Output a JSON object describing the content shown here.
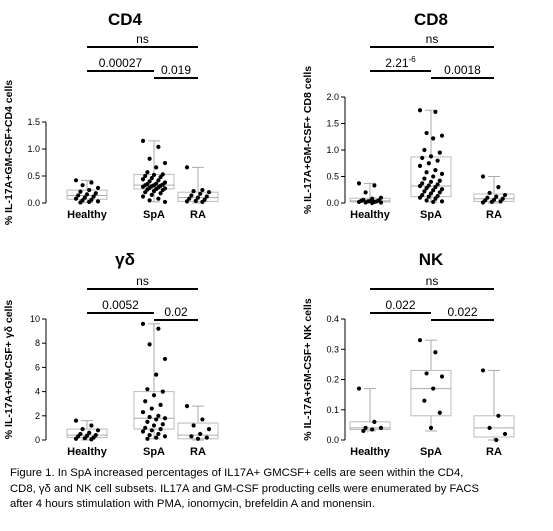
{
  "chart_data": [
    {
      "type": "box",
      "title": "CD4",
      "ylabel": "% IL-17A+GM-CSF+CD4 cells",
      "categories": [
        "Healthy",
        "SpA",
        "RA"
      ],
      "ylim": [
        0,
        1.5
      ],
      "yticks": [
        "0.0",
        "0.5",
        "1.0",
        "1.5"
      ],
      "series": [
        {
          "category": "Healthy",
          "min": 0.01,
          "q1": 0.07,
          "median": 0.14,
          "q3": 0.24,
          "max": 0.42,
          "points": [
            0.42,
            0.38,
            0.33,
            0.28,
            0.24,
            0.21,
            0.18,
            0.16,
            0.14,
            0.12,
            0.1,
            0.08,
            0.06,
            0.05,
            0.03,
            0.02,
            0.01
          ]
        },
        {
          "category": "SpA",
          "min": 0.02,
          "q1": 0.26,
          "median": 0.33,
          "q3": 0.53,
          "max": 1.15,
          "points": [
            1.15,
            1.04,
            0.82,
            0.74,
            0.66,
            0.57,
            0.53,
            0.52,
            0.5,
            0.48,
            0.46,
            0.44,
            0.42,
            0.4,
            0.38,
            0.36,
            0.35,
            0.34,
            0.33,
            0.33,
            0.32,
            0.31,
            0.3,
            0.29,
            0.28,
            0.27,
            0.26,
            0.25,
            0.24,
            0.22,
            0.2,
            0.18,
            0.15,
            0.12,
            0.08,
            0.05,
            0.02
          ]
        },
        {
          "category": "RA",
          "min": 0.0,
          "q1": 0.03,
          "median": 0.1,
          "q3": 0.2,
          "max": 0.66,
          "points": [
            0.66,
            0.24,
            0.22,
            0.2,
            0.17,
            0.14,
            0.12,
            0.1,
            0.08,
            0.06,
            0.04,
            0.03,
            0.02
          ]
        }
      ],
      "comparisons": [
        {
          "label": "ns",
          "from": "Healthy",
          "to": "RA"
        },
        {
          "label": "0.00027",
          "from": "Healthy",
          "to": "SpA"
        },
        {
          "label": "0.019",
          "from": "SpA",
          "to": "RA"
        }
      ]
    },
    {
      "type": "box",
      "title": "CD8",
      "ylabel": "% IL-17A+GM-CSF+ CD8 cells",
      "categories": [
        "Healthy",
        "SpA",
        "RA"
      ],
      "ylim": [
        0,
        2.0
      ],
      "yticks": [
        "0.0",
        "0.5",
        "1.0",
        "1.5",
        "2.0"
      ],
      "series": [
        {
          "category": "Healthy",
          "min": 0.0,
          "q1": 0.02,
          "median": 0.04,
          "q3": 0.09,
          "max": 0.37,
          "points": [
            0.37,
            0.33,
            0.2,
            0.1,
            0.08,
            0.06,
            0.05,
            0.04,
            0.04,
            0.03,
            0.03,
            0.02,
            0.02,
            0.01,
            0.01,
            0.0
          ]
        },
        {
          "category": "SpA",
          "min": 0.02,
          "q1": 0.12,
          "median": 0.32,
          "q3": 0.87,
          "max": 1.75,
          "points": [
            1.75,
            1.72,
            1.32,
            1.27,
            1.22,
            1.0,
            0.95,
            0.88,
            0.85,
            0.8,
            0.75,
            0.7,
            0.62,
            0.58,
            0.55,
            0.5,
            0.46,
            0.42,
            0.4,
            0.37,
            0.35,
            0.33,
            0.32,
            0.3,
            0.28,
            0.26,
            0.24,
            0.22,
            0.2,
            0.18,
            0.15,
            0.13,
            0.12,
            0.1,
            0.08,
            0.05,
            0.03,
            0.02
          ]
        },
        {
          "category": "RA",
          "min": 0.0,
          "q1": 0.03,
          "median": 0.08,
          "q3": 0.17,
          "max": 0.5,
          "points": [
            0.5,
            0.3,
            0.19,
            0.15,
            0.12,
            0.1,
            0.08,
            0.06,
            0.05,
            0.03,
            0.02,
            0.01
          ]
        }
      ],
      "comparisons": [
        {
          "label": "ns",
          "from": "Healthy",
          "to": "RA"
        },
        {
          "label": "2.21",
          "label_sup": "-6",
          "from": "Healthy",
          "to": "SpA"
        },
        {
          "label": "0.0018",
          "from": "SpA",
          "to": "RA"
        }
      ]
    },
    {
      "type": "box",
      "title": "γδ",
      "ylabel": "% IL-17A+GM-CSF+ γδ cells",
      "categories": [
        "Healthy",
        "SpA",
        "RA"
      ],
      "ylim": [
        0,
        10
      ],
      "yticks": [
        "0",
        "2",
        "4",
        "6",
        "8",
        "10"
      ],
      "series": [
        {
          "category": "Healthy",
          "min": 0.0,
          "q1": 0.2,
          "median": 0.4,
          "q3": 0.9,
          "max": 1.6,
          "points": [
            1.6,
            1.2,
            0.9,
            0.8,
            0.6,
            0.5,
            0.4,
            0.35,
            0.3,
            0.2,
            0.15,
            0.1,
            0.05
          ]
        },
        {
          "category": "SpA",
          "min": 0.1,
          "q1": 0.9,
          "median": 1.8,
          "q3": 4.0,
          "max": 9.6,
          "points": [
            9.6,
            9.2,
            7.9,
            6.7,
            5.4,
            4.2,
            4.0,
            3.7,
            3.2,
            2.9,
            2.6,
            2.3,
            2.0,
            1.9,
            1.8,
            1.7,
            1.5,
            1.3,
            1.2,
            1.0,
            0.9,
            0.8,
            0.7,
            0.5,
            0.4,
            0.3,
            0.2,
            0.1
          ]
        },
        {
          "category": "RA",
          "min": 0.0,
          "q1": 0.1,
          "median": 0.4,
          "q3": 1.4,
          "max": 2.8,
          "points": [
            2.8,
            1.7,
            1.2,
            0.9,
            0.5,
            0.3,
            0.2,
            0.1
          ]
        }
      ],
      "comparisons": [
        {
          "label": "ns",
          "from": "Healthy",
          "to": "RA"
        },
        {
          "label": "0.0052",
          "from": "Healthy",
          "to": "SpA"
        },
        {
          "label": "0.02",
          "from": "SpA",
          "to": "RA"
        }
      ]
    },
    {
      "type": "box",
      "title": "NK",
      "ylabel": "% IL-17A+GM-CSF+ NK cells",
      "categories": [
        "Healthy",
        "SpA",
        "RA"
      ],
      "ylim": [
        0,
        0.4
      ],
      "yticks": [
        "0.0",
        "0.1",
        "0.2",
        "0.3",
        "0.4"
      ],
      "series": [
        {
          "category": "Healthy",
          "min": 0.03,
          "q1": 0.035,
          "median": 0.04,
          "q3": 0.06,
          "max": 0.17,
          "points": [
            0.17,
            0.06,
            0.04,
            0.04,
            0.035,
            0.03
          ]
        },
        {
          "category": "SpA",
          "min": 0.03,
          "q1": 0.08,
          "median": 0.17,
          "q3": 0.23,
          "max": 0.33,
          "points": [
            0.33,
            0.29,
            0.22,
            0.21,
            0.17,
            0.13,
            0.09,
            0.04
          ]
        },
        {
          "category": "RA",
          "min": 0.0,
          "q1": 0.01,
          "median": 0.04,
          "q3": 0.08,
          "max": 0.23,
          "points": [
            0.23,
            0.08,
            0.04,
            0.02,
            0.0
          ]
        }
      ],
      "comparisons": [
        {
          "label": "ns",
          "from": "Healthy",
          "to": "RA"
        },
        {
          "label": "0.022",
          "from": "Healthy",
          "to": "SpA"
        },
        {
          "label": "0.022",
          "from": "SpA",
          "to": "RA"
        }
      ]
    }
  ],
  "caption": {
    "lines": [
      "Figure 1. In SpA increased percentages of IL17A+ GMCSF+ cells are seen within the CD4,",
      "CD8, γδ and NK cell subsets. IL17A and GM-CSF producting cells were enumerated by FACS",
      "after 4 hours stimulation with PMA, ionomycin, brefeldin A and monensin."
    ]
  }
}
